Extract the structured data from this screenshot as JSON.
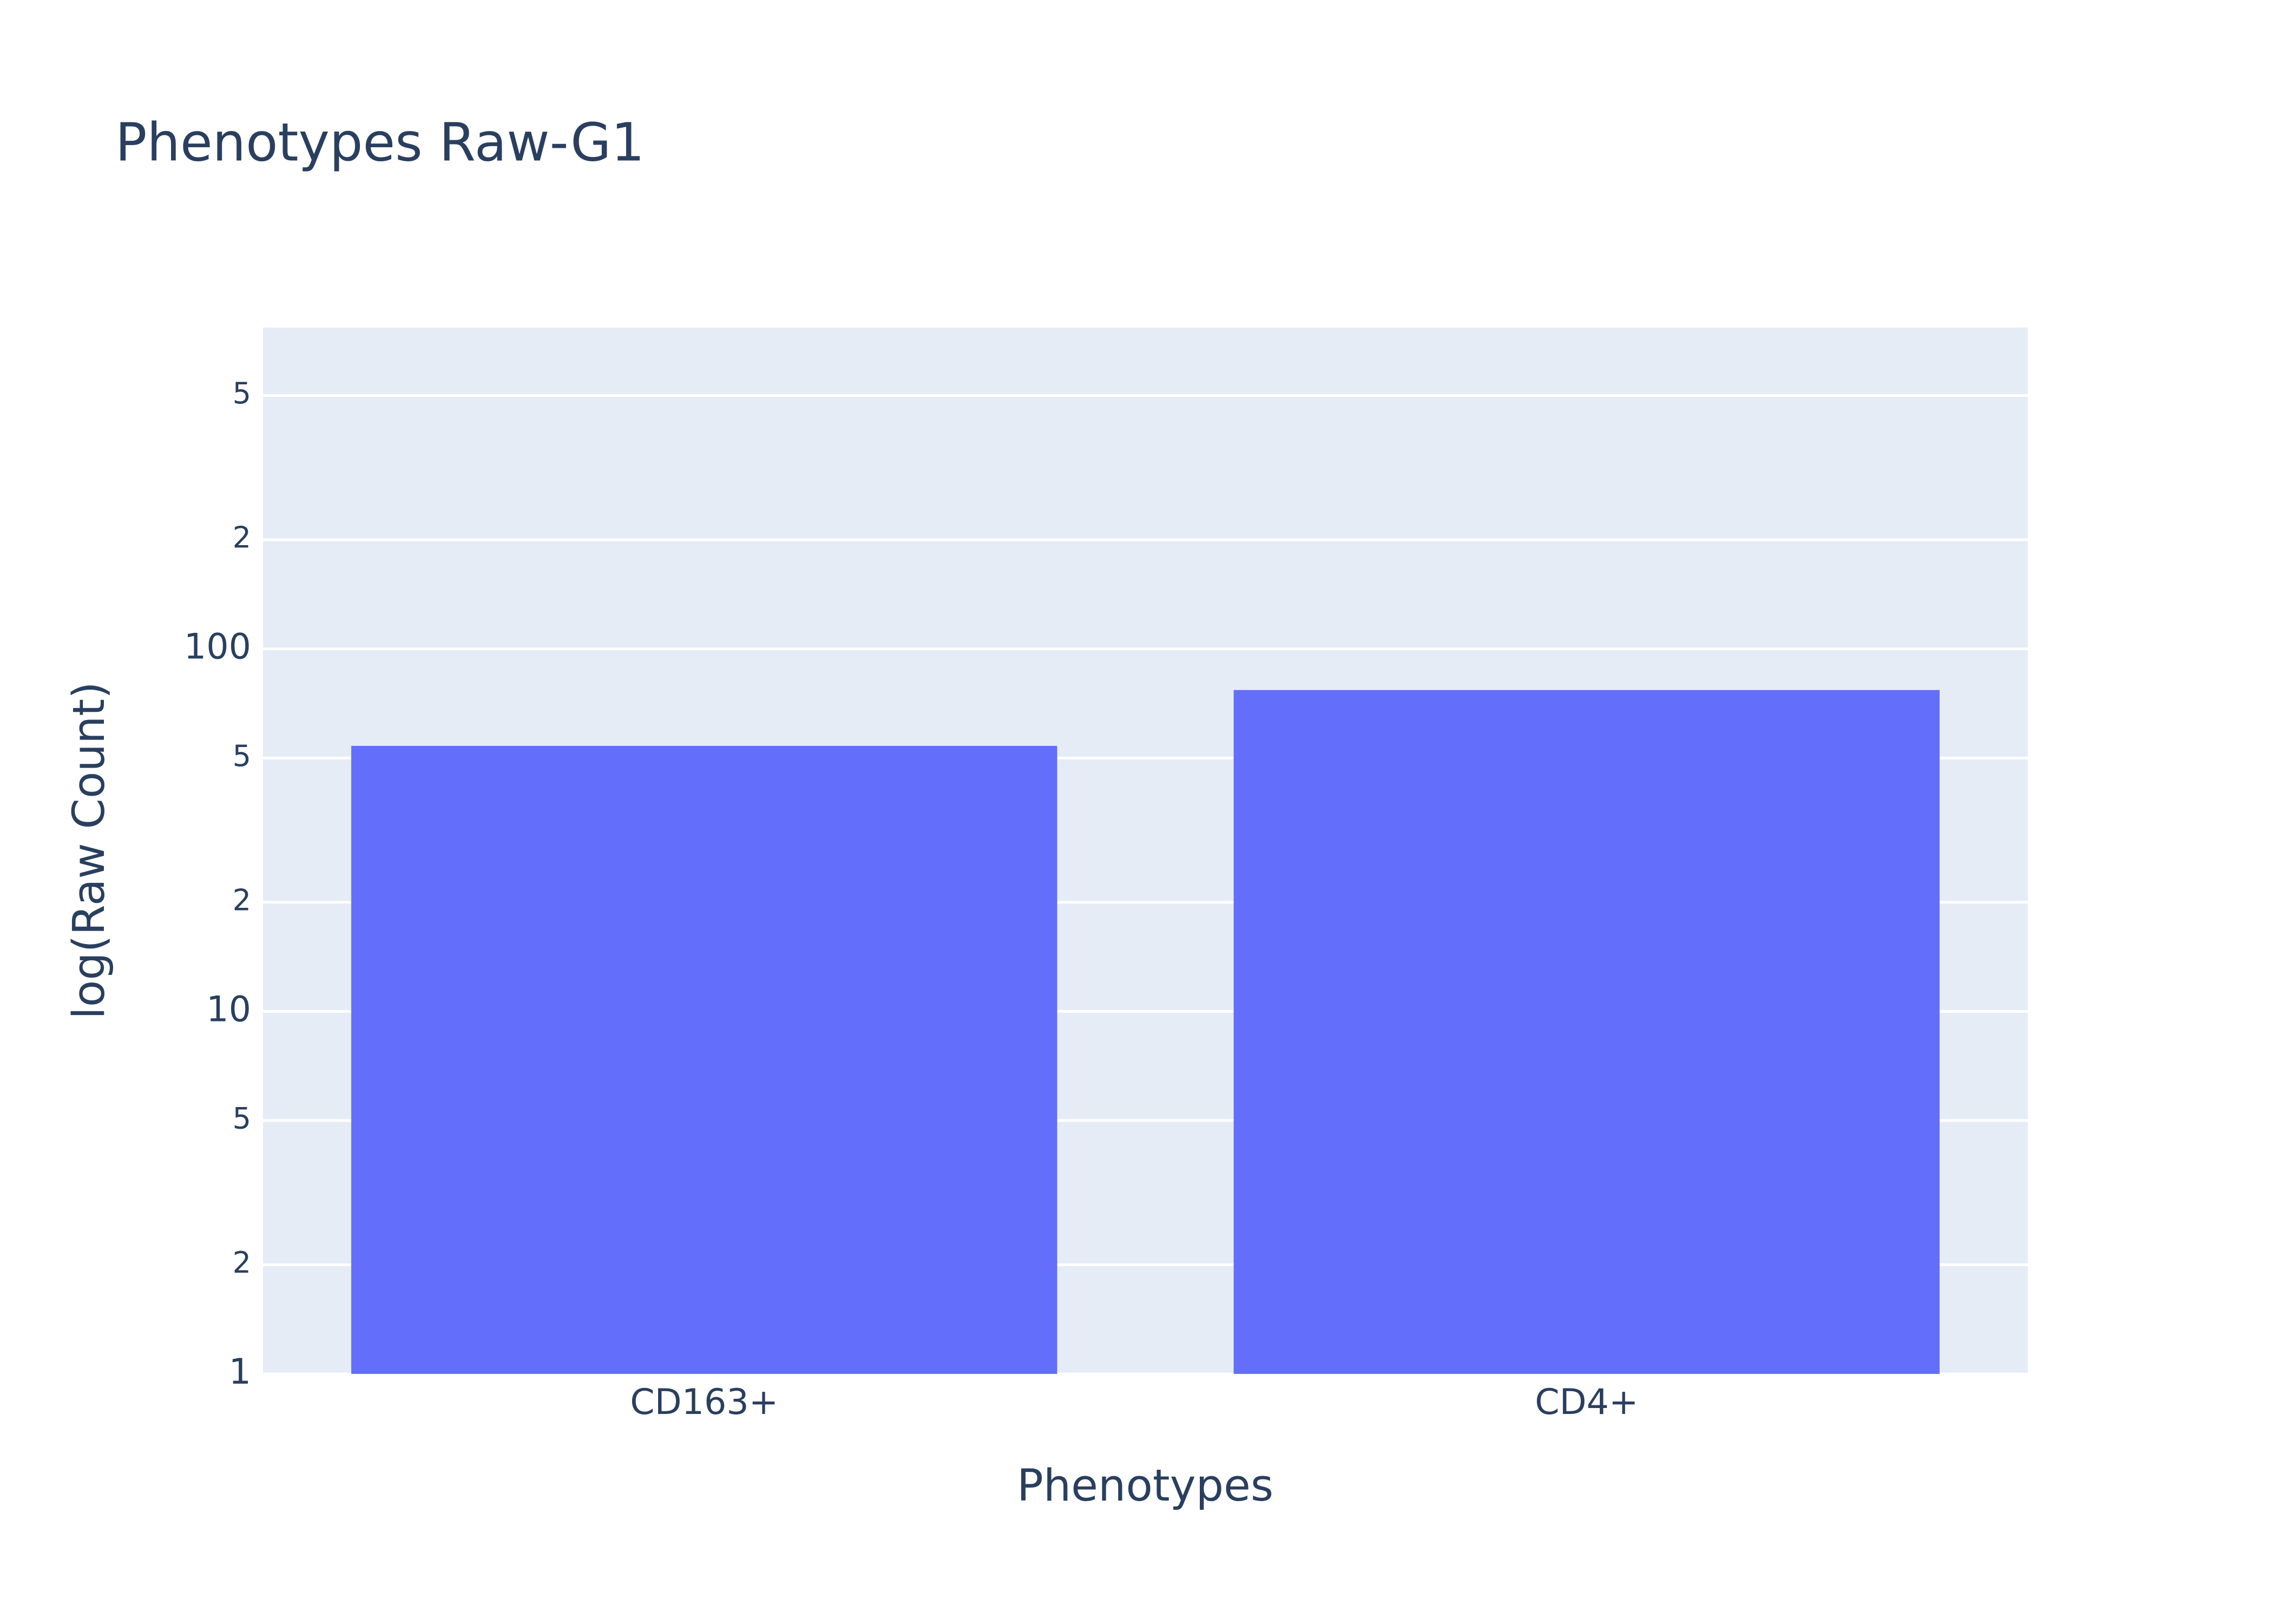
{
  "chart_data": {
    "type": "bar",
    "title": "Phenotypes Raw-G1",
    "x_label": "Phenotypes",
    "y_label": "log(Raw Count)",
    "categories": [
      "CD163+",
      "CD4+"
    ],
    "values": [
      54,
      77
    ],
    "color": "#636efa",
    "log_scale": true,
    "ylim": [
      1,
      770
    ],
    "yticks": [
      1,
      2,
      5,
      10,
      {
        "value": 20,
        "label": "2"
      },
      {
        "value": 50,
        "label": "5"
      },
      100,
      {
        "value": 200,
        "label": "2"
      },
      {
        "value": 500,
        "label": "5"
      }
    ],
    "grid": true
  }
}
